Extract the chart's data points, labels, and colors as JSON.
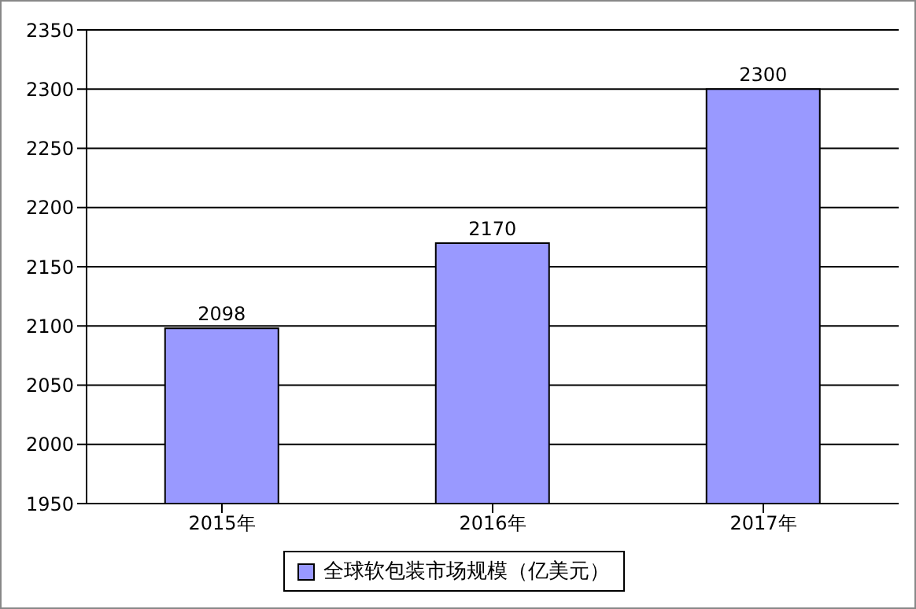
{
  "chart_data": {
    "type": "bar",
    "categories": [
      "2015年",
      "2016年",
      "2017年"
    ],
    "series": [
      {
        "name": "全球软包装市场规模（亿美元）",
        "color": "#9999ff",
        "values": [
          2098,
          2170,
          2300
        ]
      }
    ],
    "ylim": [
      1950,
      2350
    ],
    "yticks": [
      1950,
      2000,
      2050,
      2100,
      2150,
      2200,
      2250,
      2300,
      2350
    ],
    "grid": "y",
    "legend": "bottom",
    "data_labels": true
  }
}
